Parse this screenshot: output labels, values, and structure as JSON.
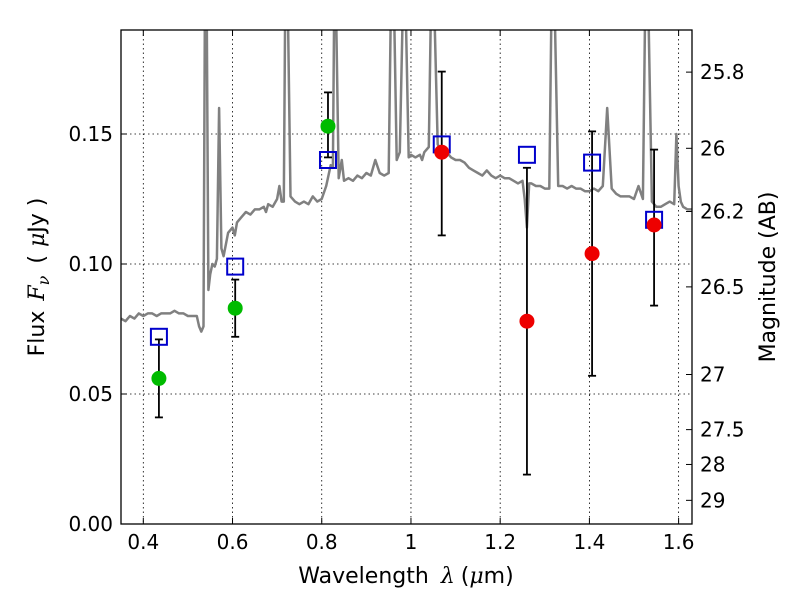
{
  "chart_data": {
    "type": "scatter",
    "title": "",
    "xlabel": "Wavelength",
    "xlabel_symbol": "λ",
    "xlabel_unit_open": "(",
    "xlabel_unit_mu": "μ",
    "xlabel_unit_rest": "m)",
    "ylabel": "Flux",
    "ylabel_symbol": "F",
    "ylabel_subscript": "ν",
    "ylabel_unit_open": "(",
    "ylabel_unit_mu": "μ",
    "ylabel_unit_rest": "Jy )",
    "y2label": "Magnitude (AB)",
    "xlim": [
      0.35,
      1.63
    ],
    "ylim": [
      0.0,
      0.19
    ],
    "grid": true,
    "xticks": [
      {
        "value": 0.4,
        "label": "0.4"
      },
      {
        "value": 0.6,
        "label": "0.6"
      },
      {
        "value": 0.8,
        "label": "0.8"
      },
      {
        "value": 1.0,
        "label": "1"
      },
      {
        "value": 1.2,
        "label": "1.2"
      },
      {
        "value": 1.4,
        "label": "1.4"
      },
      {
        "value": 1.6,
        "label": "1.6"
      }
    ],
    "yticks": [
      {
        "value": 0.0,
        "label": "0.00"
      },
      {
        "value": 0.05,
        "label": "0.05"
      },
      {
        "value": 0.1,
        "label": "0.10"
      },
      {
        "value": 0.15,
        "label": "0.15"
      }
    ],
    "y2ticks": [
      {
        "label": "25.8",
        "flux": 0.1738
      },
      {
        "label": "26",
        "flux": 0.1445
      },
      {
        "label": "26.2",
        "flux": 0.1202
      },
      {
        "label": "26.5",
        "flux": 0.0912
      },
      {
        "label": "27",
        "flux": 0.0575
      },
      {
        "label": "27.5",
        "flux": 0.0363
      },
      {
        "label": "28",
        "flux": 0.0229
      },
      {
        "label": "29",
        "flux": 0.0091
      }
    ],
    "series": [
      {
        "marker": "square-open",
        "color": "#0000cc",
        "points": [
          {
            "x": 0.435,
            "y": 0.072
          },
          {
            "x": 0.606,
            "y": 0.099
          },
          {
            "x": 0.814,
            "y": 0.14
          },
          {
            "x": 1.069,
            "y": 0.146
          },
          {
            "x": 1.26,
            "y": 0.142
          },
          {
            "x": 1.406,
            "y": 0.139
          },
          {
            "x": 1.545,
            "y": 0.117
          }
        ]
      },
      {
        "marker": "circle",
        "color": "#00bb00",
        "points": [
          {
            "x": 0.435,
            "y": 0.056,
            "err": [
              0.041,
              0.071
            ]
          },
          {
            "x": 0.606,
            "y": 0.083,
            "err": [
              0.072,
              0.094
            ]
          },
          {
            "x": 0.814,
            "y": 0.153,
            "err": [
              0.141,
              0.166
            ]
          }
        ]
      },
      {
        "marker": "circle",
        "color": "#ee0000",
        "points": [
          {
            "x": 1.069,
            "y": 0.143,
            "err": [
              0.111,
              0.174
            ]
          },
          {
            "x": 1.26,
            "y": 0.078,
            "err": [
              0.019,
              0.137
            ]
          },
          {
            "x": 1.406,
            "y": 0.104,
            "err": [
              0.057,
              0.151
            ]
          },
          {
            "x": 1.545,
            "y": 0.115,
            "err": [
              0.084,
              0.144
            ]
          }
        ]
      }
    ],
    "spectrum": {
      "color": "#808080",
      "points": [
        [
          0.35,
          0.079
        ],
        [
          0.36,
          0.078
        ],
        [
          0.37,
          0.08
        ],
        [
          0.38,
          0.079
        ],
        [
          0.39,
          0.081
        ],
        [
          0.4,
          0.08
        ],
        [
          0.41,
          0.081
        ],
        [
          0.42,
          0.081
        ],
        [
          0.43,
          0.08
        ],
        [
          0.44,
          0.081
        ],
        [
          0.45,
          0.081
        ],
        [
          0.46,
          0.081
        ],
        [
          0.47,
          0.082
        ],
        [
          0.48,
          0.081
        ],
        [
          0.49,
          0.081
        ],
        [
          0.5,
          0.08
        ],
        [
          0.51,
          0.08
        ],
        [
          0.52,
          0.08
        ],
        [
          0.525,
          0.076
        ],
        [
          0.53,
          0.074
        ],
        [
          0.535,
          0.076
        ],
        [
          0.538,
          0.2
        ],
        [
          0.542,
          0.2
        ],
        [
          0.546,
          0.09
        ],
        [
          0.55,
          0.096
        ],
        [
          0.555,
          0.1
        ],
        [
          0.56,
          0.099
        ],
        [
          0.565,
          0.102
        ],
        [
          0.57,
          0.16
        ],
        [
          0.575,
          0.106
        ],
        [
          0.58,
          0.103
        ],
        [
          0.59,
          0.112
        ],
        [
          0.6,
          0.114
        ],
        [
          0.605,
          0.111
        ],
        [
          0.61,
          0.116
        ],
        [
          0.62,
          0.118
        ],
        [
          0.63,
          0.12
        ],
        [
          0.64,
          0.119
        ],
        [
          0.65,
          0.121
        ],
        [
          0.66,
          0.121
        ],
        [
          0.67,
          0.122
        ],
        [
          0.675,
          0.12
        ],
        [
          0.68,
          0.123
        ],
        [
          0.69,
          0.122
        ],
        [
          0.7,
          0.125
        ],
        [
          0.705,
          0.13
        ],
        [
          0.71,
          0.124
        ],
        [
          0.715,
          0.124
        ],
        [
          0.718,
          0.2
        ],
        [
          0.724,
          0.2
        ],
        [
          0.73,
          0.126
        ],
        [
          0.74,
          0.124
        ],
        [
          0.75,
          0.123
        ],
        [
          0.76,
          0.124
        ],
        [
          0.77,
          0.123
        ],
        [
          0.78,
          0.126
        ],
        [
          0.79,
          0.124
        ],
        [
          0.8,
          0.125
        ],
        [
          0.81,
          0.13
        ],
        [
          0.82,
          0.138
        ],
        [
          0.825,
          0.137
        ],
        [
          0.828,
          0.2
        ],
        [
          0.832,
          0.2
        ],
        [
          0.838,
          0.133
        ],
        [
          0.845,
          0.14
        ],
        [
          0.85,
          0.132
        ],
        [
          0.86,
          0.133
        ],
        [
          0.87,
          0.132
        ],
        [
          0.88,
          0.134
        ],
        [
          0.89,
          0.133
        ],
        [
          0.9,
          0.135
        ],
        [
          0.91,
          0.134
        ],
        [
          0.92,
          0.14
        ],
        [
          0.93,
          0.135
        ],
        [
          0.94,
          0.134
        ],
        [
          0.95,
          0.135
        ],
        [
          0.955,
          0.2
        ],
        [
          0.962,
          0.2
        ],
        [
          0.968,
          0.14
        ],
        [
          0.975,
          0.143
        ],
        [
          0.982,
          0.2
        ],
        [
          0.988,
          0.2
        ],
        [
          0.995,
          0.141
        ],
        [
          1.0,
          0.142
        ],
        [
          1.01,
          0.141
        ],
        [
          1.02,
          0.142
        ],
        [
          1.025,
          0.14
        ],
        [
          1.03,
          0.143
        ],
        [
          1.04,
          0.145
        ],
        [
          1.045,
          0.2
        ],
        [
          1.052,
          0.2
        ],
        [
          1.06,
          0.146
        ],
        [
          1.07,
          0.143
        ],
        [
          1.08,
          0.143
        ],
        [
          1.09,
          0.141
        ],
        [
          1.1,
          0.14
        ],
        [
          1.11,
          0.14
        ],
        [
          1.12,
          0.139
        ],
        [
          1.13,
          0.137
        ],
        [
          1.14,
          0.136
        ],
        [
          1.15,
          0.135
        ],
        [
          1.16,
          0.134
        ],
        [
          1.17,
          0.136
        ],
        [
          1.18,
          0.134
        ],
        [
          1.19,
          0.133
        ],
        [
          1.2,
          0.134
        ],
        [
          1.21,
          0.133
        ],
        [
          1.22,
          0.133
        ],
        [
          1.23,
          0.132
        ],
        [
          1.24,
          0.131
        ],
        [
          1.25,
          0.132
        ],
        [
          1.255,
          0.125
        ],
        [
          1.26,
          0.114
        ],
        [
          1.265,
          0.131
        ],
        [
          1.27,
          0.131
        ],
        [
          1.28,
          0.13
        ],
        [
          1.29,
          0.13
        ],
        [
          1.3,
          0.129
        ],
        [
          1.31,
          0.129
        ],
        [
          1.315,
          0.2
        ],
        [
          1.322,
          0.2
        ],
        [
          1.33,
          0.13
        ],
        [
          1.34,
          0.13
        ],
        [
          1.35,
          0.129
        ],
        [
          1.36,
          0.13
        ],
        [
          1.37,
          0.129
        ],
        [
          1.38,
          0.129
        ],
        [
          1.39,
          0.128
        ],
        [
          1.4,
          0.128
        ],
        [
          1.41,
          0.129
        ],
        [
          1.42,
          0.128
        ],
        [
          1.43,
          0.13
        ],
        [
          1.44,
          0.16
        ],
        [
          1.45,
          0.129
        ],
        [
          1.46,
          0.127
        ],
        [
          1.47,
          0.126
        ],
        [
          1.48,
          0.126
        ],
        [
          1.49,
          0.126
        ],
        [
          1.5,
          0.125
        ],
        [
          1.51,
          0.13
        ],
        [
          1.52,
          0.125
        ],
        [
          1.525,
          0.2
        ],
        [
          1.532,
          0.2
        ],
        [
          1.54,
          0.124
        ],
        [
          1.55,
          0.122
        ],
        [
          1.56,
          0.122
        ],
        [
          1.57,
          0.123
        ],
        [
          1.58,
          0.124
        ],
        [
          1.59,
          0.123
        ],
        [
          1.595,
          0.15
        ],
        [
          1.6,
          0.13
        ],
        [
          1.605,
          0.124
        ],
        [
          1.61,
          0.122
        ],
        [
          1.62,
          0.121
        ],
        [
          1.63,
          0.121
        ]
      ]
    }
  }
}
